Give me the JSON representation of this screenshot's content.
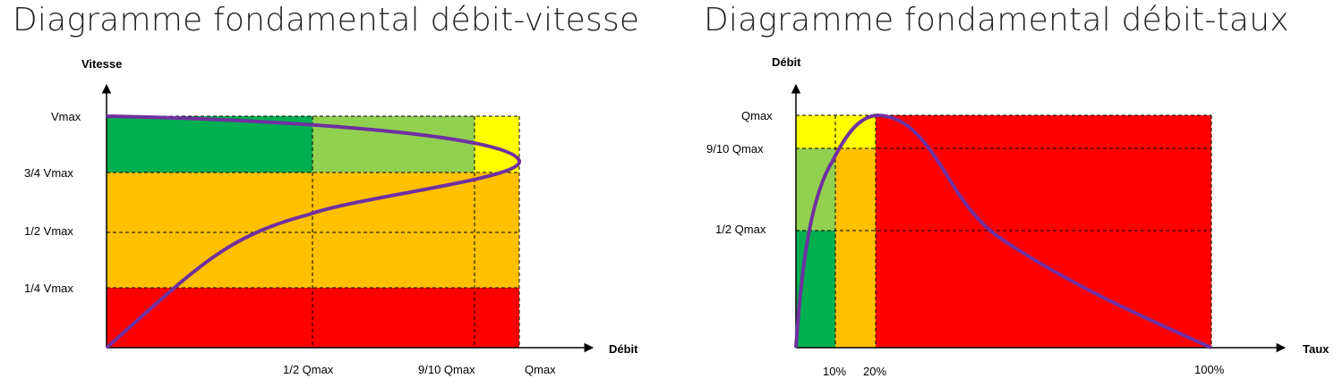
{
  "left": {
    "title": "Diagramme fondamental débit-vitesse",
    "y_axis_label": "Vitesse",
    "x_axis_label": "Débit",
    "y_ticks": [
      "Vmax",
      "3/4 Vmax",
      "1/2 Vmax",
      "1/4 Vmax"
    ],
    "x_ticks": [
      "1/2 Qmax",
      "9/10 Qmax",
      "Qmax"
    ]
  },
  "right": {
    "title": "Diagramme fondamental débit-taux",
    "y_axis_label": "Débit",
    "x_axis_label": "Taux",
    "y_ticks": [
      "Qmax",
      "9/10 Qmax",
      "1/2 Qmax"
    ],
    "x_ticks": [
      "10%",
      "20%",
      "100%"
    ]
  },
  "colors": {
    "dark_green": "#00b050",
    "light_green": "#92d050",
    "yellow": "#ffff00",
    "orange": "#ffc000",
    "red": "#ff0000",
    "curve": "#7030a0"
  }
}
